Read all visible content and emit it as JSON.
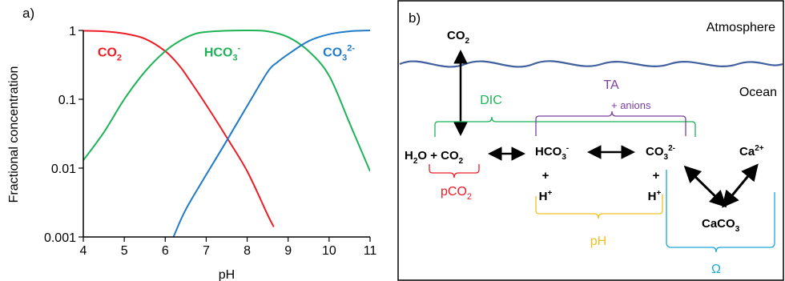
{
  "chart_data": {
    "type": "line",
    "panel_label": "a)",
    "xlabel": "pH",
    "ylabel": "Fractional concentration",
    "xlim": [
      4,
      11
    ],
    "ylim": [
      0.001,
      1
    ],
    "yscale": "log",
    "x_ticks": [
      "4",
      "5",
      "6",
      "7",
      "8",
      "9",
      "10",
      "11"
    ],
    "y_ticks": [
      "0.001",
      "0.01",
      "0.1",
      "1"
    ],
    "grid": false,
    "series": [
      {
        "name": "CO2",
        "label_main": "CO",
        "label_sub": "2",
        "label_sup": "",
        "color": "#ee1c25",
        "x": [
          4.0,
          4.5,
          5.0,
          5.5,
          6.0,
          6.3,
          6.5,
          7.0,
          7.5,
          8.0,
          8.5,
          8.65
        ],
        "y": [
          0.99,
          0.97,
          0.9,
          0.76,
          0.5,
          0.33,
          0.23,
          0.083,
          0.028,
          0.009,
          0.0021,
          0.0014
        ]
      },
      {
        "name": "HCO3-",
        "label_main": "HCO",
        "label_sub": "3",
        "label_sup": "-",
        "color": "#1db356",
        "x": [
          4.0,
          4.5,
          5.0,
          5.5,
          6.0,
          6.35,
          6.7,
          7.0,
          7.5,
          8.0,
          8.5,
          9.0,
          9.5,
          10.0,
          10.5,
          11.0
        ],
        "y": [
          0.013,
          0.033,
          0.1,
          0.25,
          0.5,
          0.7,
          0.88,
          0.95,
          0.99,
          1.0,
          0.97,
          0.8,
          0.5,
          0.22,
          0.045,
          0.009
        ]
      },
      {
        "name": "CO3 2-",
        "label_main": "CO",
        "label_sub": "3",
        "label_sup": "2-",
        "color": "#1f7bc7",
        "x": [
          6.2,
          6.5,
          7.0,
          7.5,
          8.0,
          8.5,
          8.75,
          9.0,
          9.5,
          10.0,
          10.5,
          11.0
        ],
        "y": [
          0.001,
          0.0025,
          0.008,
          0.025,
          0.08,
          0.25,
          0.35,
          0.45,
          0.7,
          0.88,
          0.97,
          1.0
        ]
      }
    ]
  },
  "diagram": {
    "panel_label": "b)",
    "atmosphere_label": "Atmosphere",
    "ocean_label": "Ocean",
    "co2_gas": {
      "main": "CO",
      "sub": "2"
    },
    "dic_label": "DIC",
    "ta_label": "TA",
    "ta_extra": "+ anions",
    "h2o_co2": {
      "h": "H",
      "sub1": "2",
      "o_plus": "O + ",
      "co": "CO",
      "sub2": "2"
    },
    "hco3": {
      "main": "HCO",
      "sub": "3",
      "sup": "-"
    },
    "co3": {
      "main": "CO",
      "sub": "3",
      "sup": "2-"
    },
    "ca": {
      "main": "Ca",
      "sup": "2+"
    },
    "plus_sign": "+",
    "h_plus": {
      "main": "H",
      "sup": "+"
    },
    "caco3": {
      "main": "CaCO",
      "sub": "3"
    },
    "pco2_label": {
      "main": "pCO",
      "sub": "2"
    },
    "ph_label": "pH",
    "omega_label": "Ω",
    "colors": {
      "water": "#3f5f9e",
      "dic": "#1db356",
      "ta": "#7a3fa1",
      "pco2": "#ee1c25",
      "ph": "#f0c020",
      "omega": "#1aa7d9"
    }
  }
}
